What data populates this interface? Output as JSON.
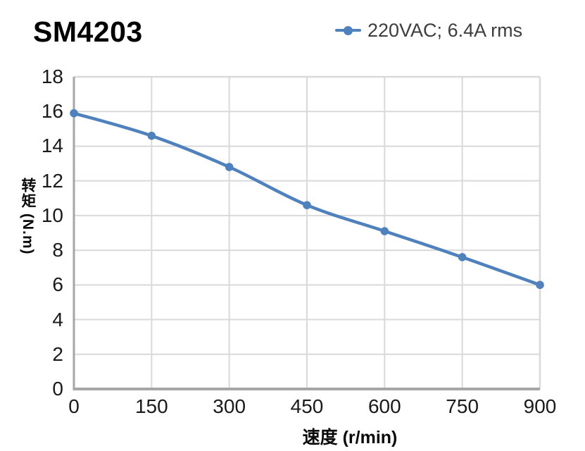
{
  "title": "SM4203",
  "legend": {
    "series_label": "220VAC;  6.4A rms"
  },
  "colors": {
    "series": "#4f81bd",
    "grid": "#d9d9d9",
    "axis": "#a6a6a6",
    "tick_text": "#1a1a1a",
    "legend_text": "#3d3d3d",
    "title_text": "#000000"
  },
  "chart_data": {
    "type": "line",
    "title": "SM4203",
    "x": [
      0,
      150,
      300,
      450,
      600,
      750,
      900
    ],
    "series": [
      {
        "name": "220VAC;  6.4A rms",
        "values": [
          15.9,
          14.6,
          12.8,
          10.6,
          9.1,
          7.6,
          6.0
        ]
      }
    ],
    "xlabel": "速度 (r/min)",
    "ylabel": "转矩 (N.m)",
    "xlim": [
      0,
      900
    ],
    "ylim": [
      0,
      18
    ],
    "x_ticks": [
      0,
      150,
      300,
      450,
      600,
      750,
      900
    ],
    "y_ticks": [
      0,
      2,
      4,
      6,
      8,
      10,
      12,
      14,
      16,
      18
    ],
    "grid": true,
    "legend_position": "top-right",
    "marker": "circle",
    "line_style": "smooth"
  }
}
